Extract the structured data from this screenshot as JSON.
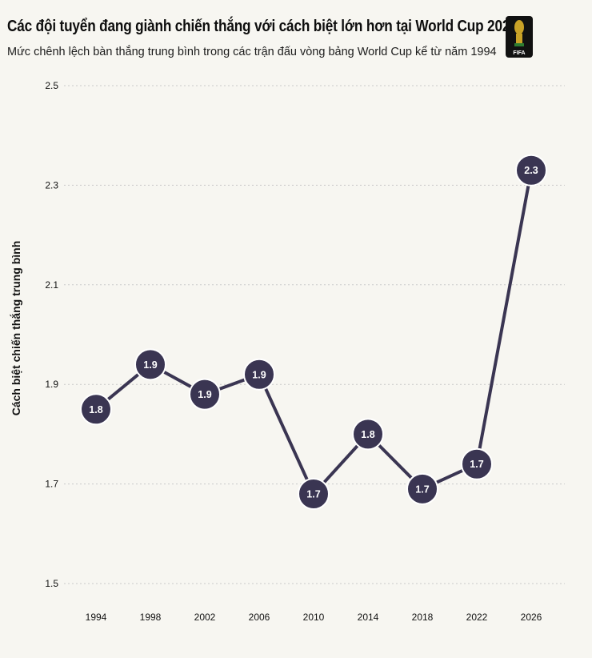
{
  "header": {
    "title": "Các đội tuyển đang giành chiến thắng với cách biệt lớn hơn tại World Cup 2026",
    "subtitle": "Mức chênh lệch bàn thắng trung bình trong các trận đấu vòng bảng World Cup kể từ năm 1994",
    "logo_text": "FIFA"
  },
  "chart_data": {
    "type": "line",
    "title": "Các đội tuyển đang giành chiến thắng với cách biệt lớn hơn tại World Cup 2026",
    "subtitle": "Mức chênh lệch bàn thắng trung bình trong các trận đấu vòng bảng World Cup kể từ năm 1994",
    "xlabel": "",
    "ylabel": "Cách biệt chiến thắng trung bình",
    "categories": [
      "1994",
      "1998",
      "2002",
      "2006",
      "2010",
      "2014",
      "2018",
      "2022",
      "2026"
    ],
    "values": [
      1.85,
      1.94,
      1.88,
      1.92,
      1.68,
      1.8,
      1.69,
      1.74,
      2.33
    ],
    "data_labels": [
      "1.8",
      "1.9",
      "1.9",
      "1.9",
      "1.7",
      "1.8",
      "1.7",
      "1.7",
      "2.3"
    ],
    "ylim": [
      1.5,
      2.5
    ],
    "yticks": [
      "1.5",
      "1.7",
      "1.9",
      "2.1",
      "2.3",
      "2.5"
    ],
    "grid": "horizontal dotted",
    "colors": {
      "line": "#3a3552",
      "marker": "#3a3552",
      "marker_text": "#ffffff",
      "background": "#f7f6f1",
      "grid": "#c9c9c9"
    }
  }
}
